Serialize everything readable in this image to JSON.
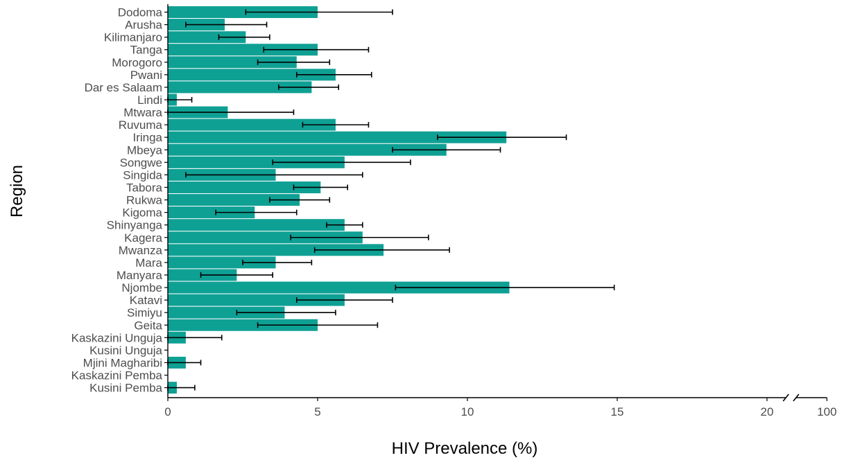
{
  "chart_data": {
    "type": "bar",
    "orientation": "horizontal",
    "xlabel": "HIV Prevalence (%)",
    "ylabel": "Region",
    "xlim": [
      0,
      22
    ],
    "x_ticks": [
      0,
      5,
      10,
      15,
      20,
      100
    ],
    "x_tick_labels": [
      "0",
      "5",
      "10",
      "15",
      "20",
      "100"
    ],
    "x_axis_break": [
      20.7,
      20.9
    ],
    "grid": false,
    "bar_color": "#0fa094",
    "categories": [
      "Dodoma",
      "Arusha",
      "Kilimanjaro",
      "Tanga",
      "Morogoro",
      "Pwani",
      "Dar es Salaam",
      "Lindi",
      "Mtwara",
      "Ruvuma",
      "Iringa",
      "Mbeya",
      "Songwe",
      "Singida",
      "Tabora",
      "Rukwa",
      "Kigoma",
      "Shinyanga",
      "Kagera",
      "Mwanza",
      "Mara",
      "Manyara",
      "Njombe",
      "Katavi",
      "Simiyu",
      "Geita",
      "Kaskazini Unguja",
      "Kusini Unguja",
      "Mjini Magharibi",
      "Kaskazini Pemba",
      "Kusini Pemba"
    ],
    "values": [
      5.0,
      1.9,
      2.6,
      5.0,
      4.3,
      5.6,
      4.8,
      0.3,
      2.0,
      5.6,
      11.3,
      9.3,
      5.9,
      3.6,
      5.1,
      4.4,
      2.9,
      5.9,
      6.5,
      7.2,
      3.6,
      2.3,
      11.4,
      5.9,
      3.9,
      5.0,
      0.6,
      0,
      0.6,
      0,
      0.3
    ],
    "error_low": [
      2.6,
      0.6,
      1.7,
      3.2,
      3.0,
      4.3,
      3.7,
      0.0,
      0.0,
      4.5,
      9.0,
      7.5,
      3.5,
      0.6,
      4.2,
      3.4,
      1.6,
      5.3,
      4.1,
      4.9,
      2.5,
      1.1,
      7.6,
      4.3,
      2.3,
      3.0,
      0.0,
      null,
      0.0,
      null,
      0.0
    ],
    "error_high": [
      7.5,
      3.3,
      3.4,
      6.7,
      5.4,
      6.8,
      5.7,
      0.8,
      4.2,
      6.7,
      13.3,
      11.1,
      8.1,
      6.5,
      6.0,
      5.4,
      4.3,
      6.5,
      8.7,
      9.4,
      4.8,
      3.5,
      14.9,
      7.5,
      5.6,
      7.0,
      1.8,
      null,
      1.1,
      null,
      0.9
    ]
  }
}
